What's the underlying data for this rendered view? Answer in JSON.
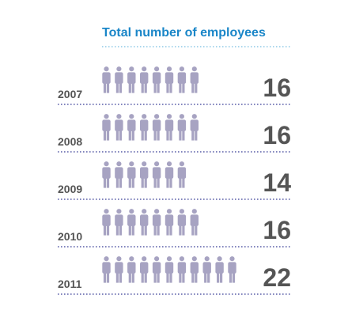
{
  "chart_data": {
    "type": "pictograph",
    "title": "Total number of employees",
    "unit_per_icon": 2,
    "icon": "person-icon",
    "categories": [
      "2007",
      "2008",
      "2009",
      "2010",
      "2011"
    ],
    "values": [
      16,
      16,
      14,
      16,
      22
    ],
    "value_labels": [
      "16",
      "16",
      "14",
      "16",
      "22"
    ]
  },
  "colors": {
    "title": "#1a86c8",
    "year": "#555555",
    "value": "#555555",
    "icon": "#a7a3c2",
    "divider": "#5a5fa8",
    "title_rule": "#8ec8e6"
  }
}
